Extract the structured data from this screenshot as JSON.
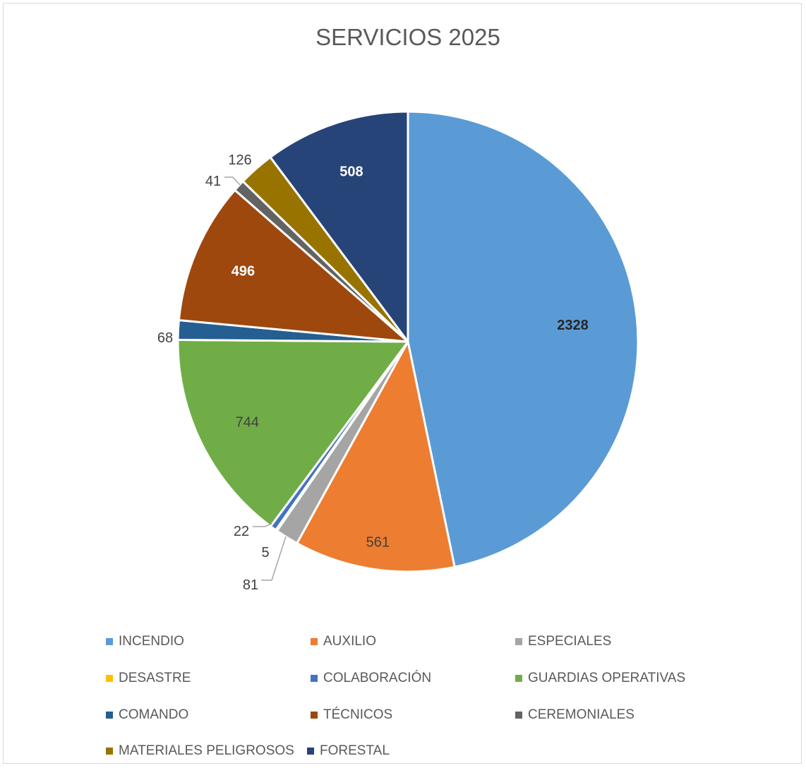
{
  "chart_data": {
    "type": "pie",
    "title": "SERVICIOS 2025",
    "series": [
      {
        "name": "INCENDIO",
        "value": 2328,
        "color": "#5B9BD5"
      },
      {
        "name": "AUXILIO",
        "value": 561,
        "color": "#ED7D31"
      },
      {
        "name": "ESPECIALES",
        "value": 81,
        "color": "#A5A5A5"
      },
      {
        "name": "DESASTRE",
        "value": 5,
        "color": "#FFC000"
      },
      {
        "name": "COLABORACIÓN",
        "value": 22,
        "color": "#4472C4"
      },
      {
        "name": "GUARDIAS OPERATIVAS",
        "value": 744,
        "color": "#70AD47"
      },
      {
        "name": "COMANDO",
        "value": 68,
        "color": "#255E91"
      },
      {
        "name": "TÉCNICOS",
        "value": 496,
        "color": "#9E480E"
      },
      {
        "name": "CEREMONIALES",
        "value": 41,
        "color": "#636363"
      },
      {
        "name": "MATERIALES PELIGROSOS",
        "value": 126,
        "color": "#997300"
      },
      {
        "name": "FORESTAL",
        "value": 508,
        "color": "#264478"
      }
    ],
    "legend_position": "bottom"
  }
}
